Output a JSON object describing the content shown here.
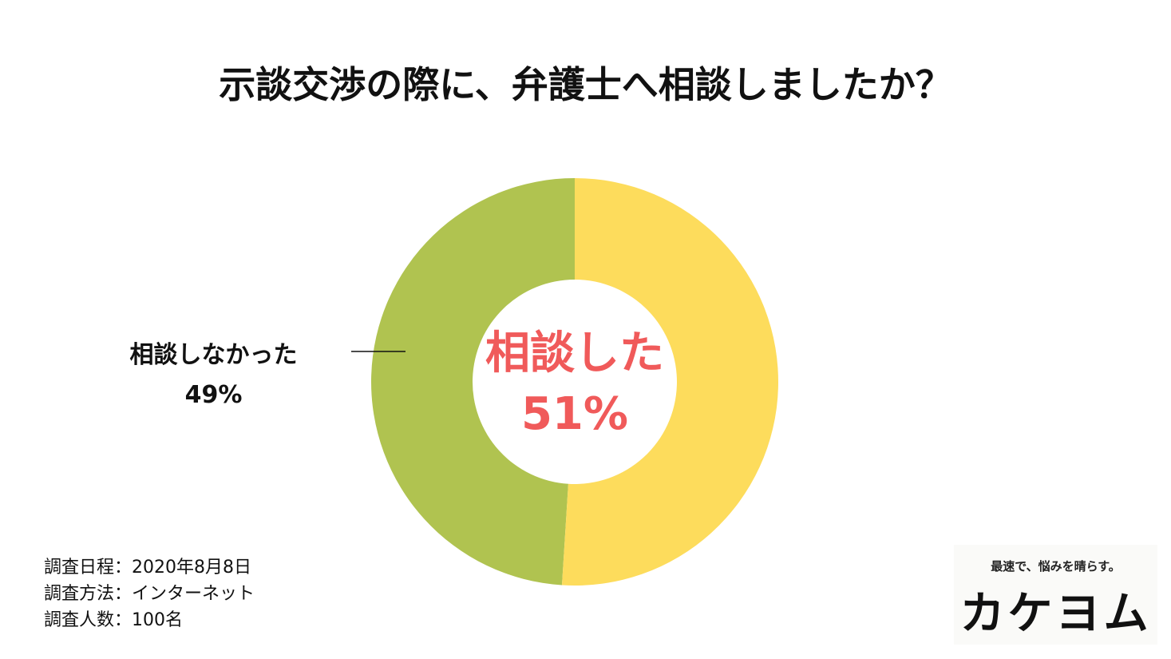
{
  "chart_data": {
    "type": "donut",
    "title": "示談交渉の際に、弁護士へ相談しましたか？",
    "categories": [
      "相談した",
      "相談しなかった"
    ],
    "values": [
      51,
      49
    ],
    "value_labels": [
      "51%",
      "49%"
    ],
    "colors": [
      "#fddc5c",
      "#b0c350"
    ]
  },
  "notes": [
    "調査日程：2020年8月8日",
    "調査方法：インターネット",
    "調査人数：100名"
  ],
  "logo": {
    "tagline": "最速で、悩みを晴らす。",
    "brand": "カケヨム"
  }
}
